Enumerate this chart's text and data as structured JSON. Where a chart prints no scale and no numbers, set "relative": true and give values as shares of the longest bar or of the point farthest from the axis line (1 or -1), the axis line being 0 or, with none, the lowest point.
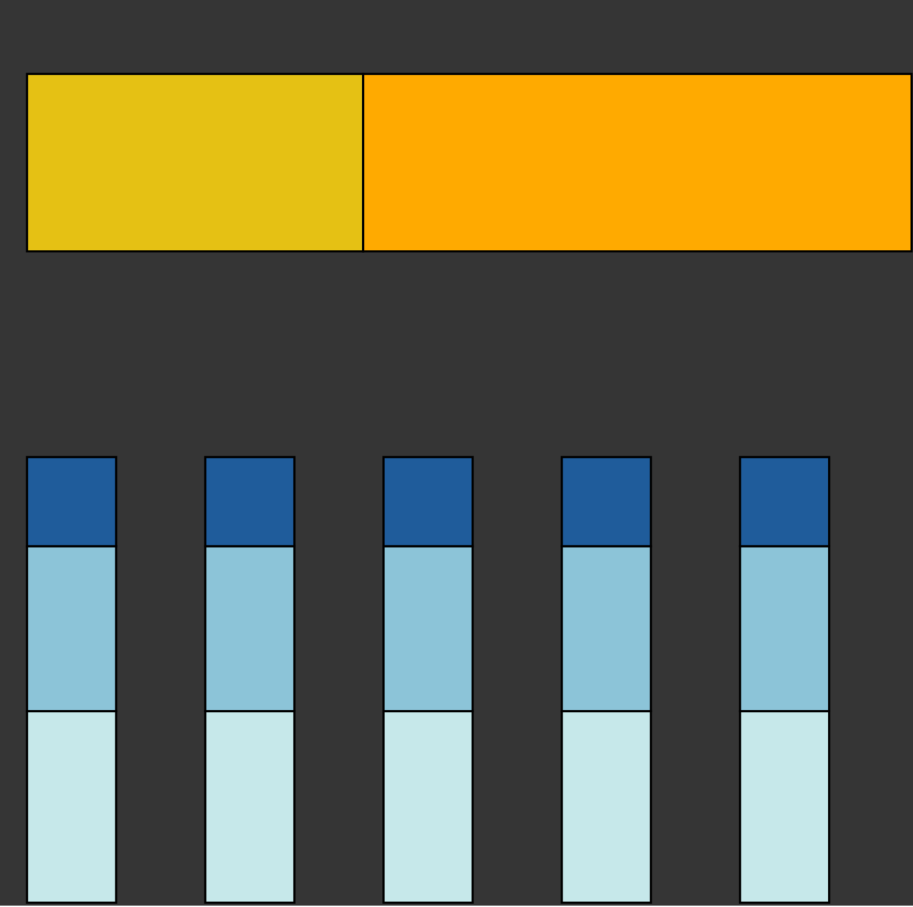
{
  "chart_data": [
    {
      "type": "bar",
      "orientation": "horizontal",
      "stacked": true,
      "relative": true,
      "categories": [
        null
      ],
      "legend": false,
      "grid": false,
      "tick_labels": false,
      "series": [
        {
          "color": "#e5c114",
          "values": [
            0.38
          ]
        },
        {
          "color": "#ffaa00",
          "values": [
            0.62
          ]
        }
      ]
    },
    {
      "type": "bar",
      "stacked": true,
      "relative": true,
      "categories": [
        null,
        null,
        null,
        null,
        null
      ],
      "legend": false,
      "grid": false,
      "tick_labels": false,
      "series": [
        {
          "color": "#c6e8ea",
          "values": [
            0.43,
            0.43,
            0.43,
            0.43,
            0.43
          ]
        },
        {
          "color": "#8cc4d8",
          "values": [
            0.37,
            0.37,
            0.37,
            0.37,
            0.37
          ]
        },
        {
          "color": "#1f5c9b",
          "values": [
            0.2,
            0.2,
            0.2,
            0.2,
            0.2
          ]
        }
      ]
    }
  ]
}
